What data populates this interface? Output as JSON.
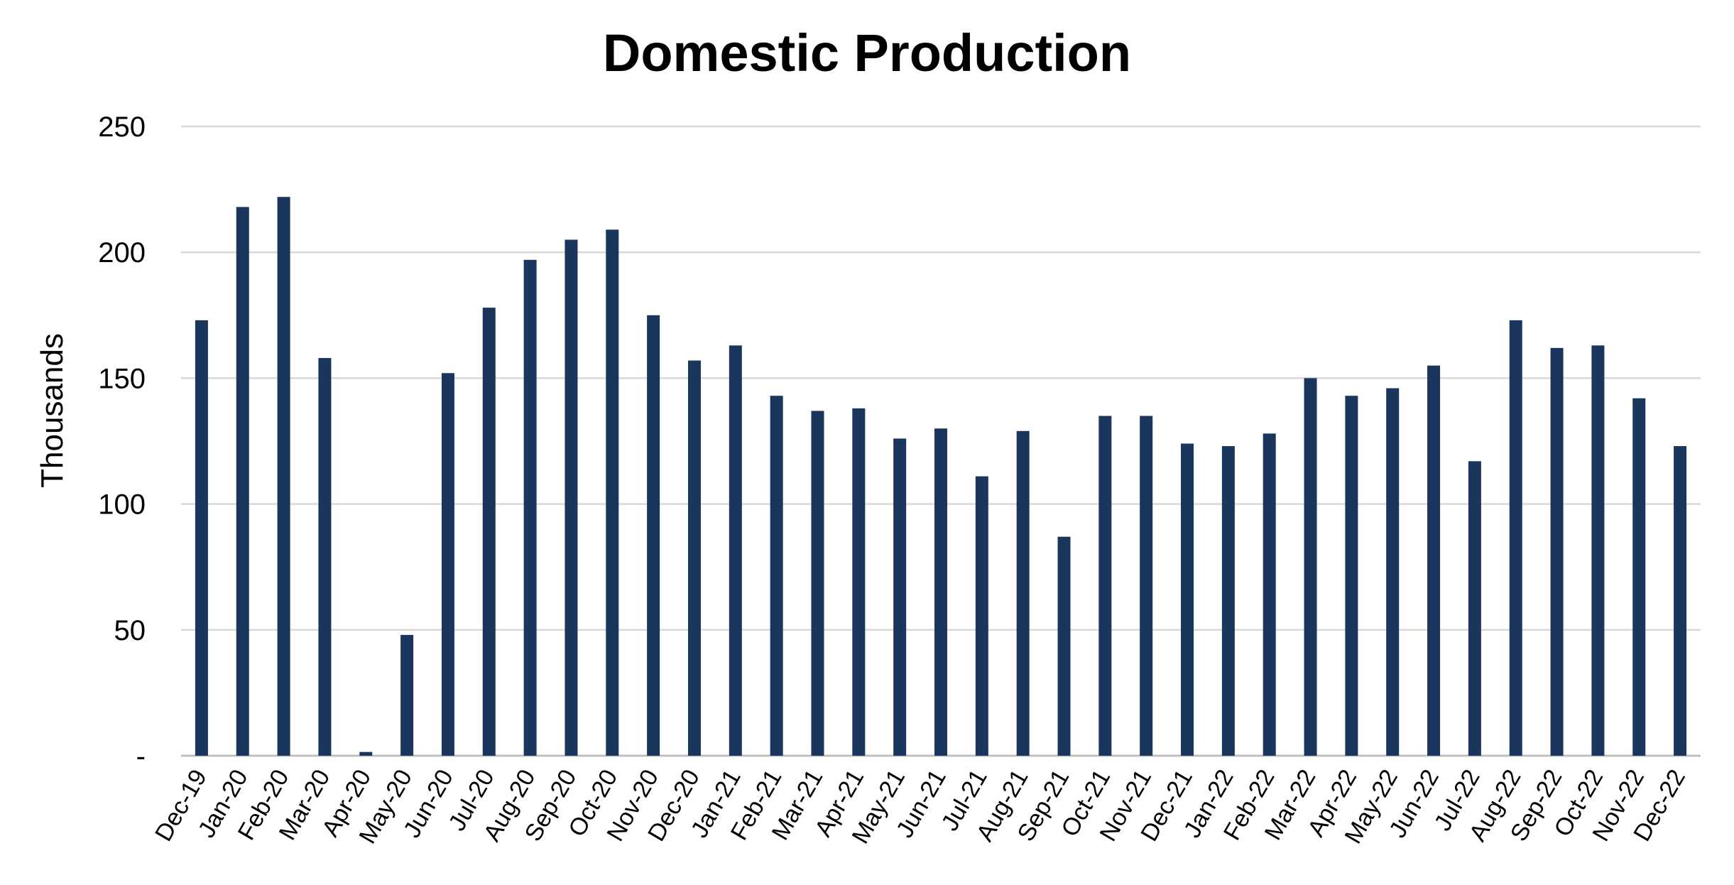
{
  "chart_data": {
    "type": "bar",
    "title": "Domestic Production",
    "xlabel": "",
    "ylabel": "Thousands",
    "ylim": [
      0,
      250
    ],
    "yticks": [
      0,
      50,
      100,
      150,
      200,
      250
    ],
    "ytick_labels": [
      "-",
      "50",
      "100",
      "150",
      "200",
      "250"
    ],
    "grid": true,
    "legend": "none",
    "bar_color": "#1b365d",
    "grid_color": "#d9d9d9",
    "categories": [
      "Dec-19",
      "Jan-20",
      "Feb-20",
      "Mar-20",
      "Apr-20",
      "May-20",
      "Jun-20",
      "Jul-20",
      "Aug-20",
      "Sep-20",
      "Oct-20",
      "Nov-20",
      "Dec-20",
      "Jan-21",
      "Feb-21",
      "Mar-21",
      "Apr-21",
      "May-21",
      "Jun-21",
      "Jul-21",
      "Aug-21",
      "Sep-21",
      "Oct-21",
      "Nov-21",
      "Dec-21",
      "Jan-22",
      "Feb-22",
      "Mar-22",
      "Apr-22",
      "May-22",
      "Jun-22",
      "Jul-22",
      "Aug-22",
      "Sep-22",
      "Oct-22",
      "Nov-22",
      "Dec-22"
    ],
    "values": [
      173,
      218,
      222,
      158,
      1.5,
      48,
      152,
      178,
      197,
      205,
      209,
      175,
      157,
      163,
      143,
      137,
      138,
      126,
      130,
      111,
      129,
      87,
      135,
      135,
      124,
      123,
      128,
      150,
      143,
      146,
      155,
      117,
      173,
      162,
      163,
      142,
      123
    ]
  }
}
